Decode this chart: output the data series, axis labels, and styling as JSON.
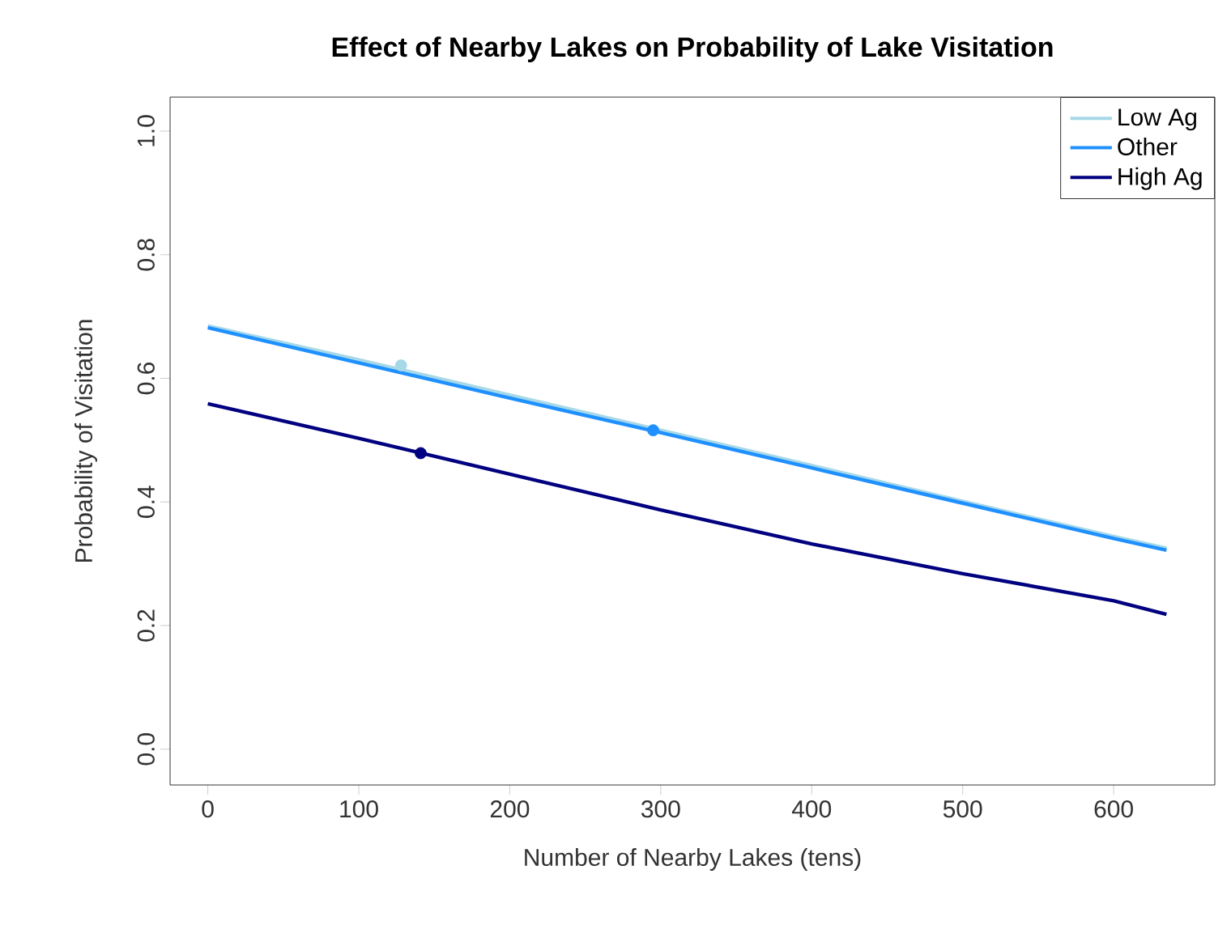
{
  "chart_data": {
    "type": "line",
    "title": "Effect of Nearby Lakes on Probability of Lake Visitation",
    "xlabel": "Number of Nearby Lakes (tens)",
    "ylabel": "Probability of Visitation",
    "xlim": [
      -25,
      667
    ],
    "ylim": [
      -0.058,
      1.055
    ],
    "xticks": [
      0,
      100,
      200,
      300,
      400,
      500,
      600
    ],
    "yticks": [
      {
        "value": 0,
        "label": "0.0"
      },
      0.2,
      0.4,
      0.6,
      0.8,
      {
        "value": 1,
        "label": "1.0"
      }
    ],
    "grid": false,
    "legend": "top right",
    "series": [
      {
        "name": "Low Ag",
        "color": "#a6d8e8",
        "x": [
          0,
          100,
          200,
          300,
          400,
          500,
          600,
          635
        ],
        "values": [
          0.685,
          0.63,
          0.573,
          0.516,
          0.459,
          0.401,
          0.344,
          0.325
        ]
      },
      {
        "name": "Other",
        "color": "#1e90ff",
        "x": [
          0,
          100,
          200,
          300,
          400,
          500,
          600,
          635
        ],
        "values": [
          0.682,
          0.625,
          0.568,
          0.512,
          0.455,
          0.398,
          0.341,
          0.322
        ]
      },
      {
        "name": "High Ag",
        "color": "#000080",
        "x": [
          0,
          100,
          200,
          300,
          400,
          500,
          600,
          635
        ],
        "values": [
          0.559,
          0.503,
          0.445,
          0.387,
          0.332,
          0.284,
          0.24,
          0.218
        ]
      },
      {
        "type": "scatter",
        "marker": "circle",
        "color": "#a6d8e8",
        "x": [
          128
        ],
        "values": [
          0.621
        ]
      },
      {
        "type": "scatter",
        "marker": "circle",
        "color": "#1e90ff",
        "x": [
          295
        ],
        "values": [
          0.516
        ]
      },
      {
        "type": "scatter",
        "marker": "circle",
        "color": "#000080",
        "x": [
          141
        ],
        "values": [
          0.479
        ]
      }
    ]
  }
}
